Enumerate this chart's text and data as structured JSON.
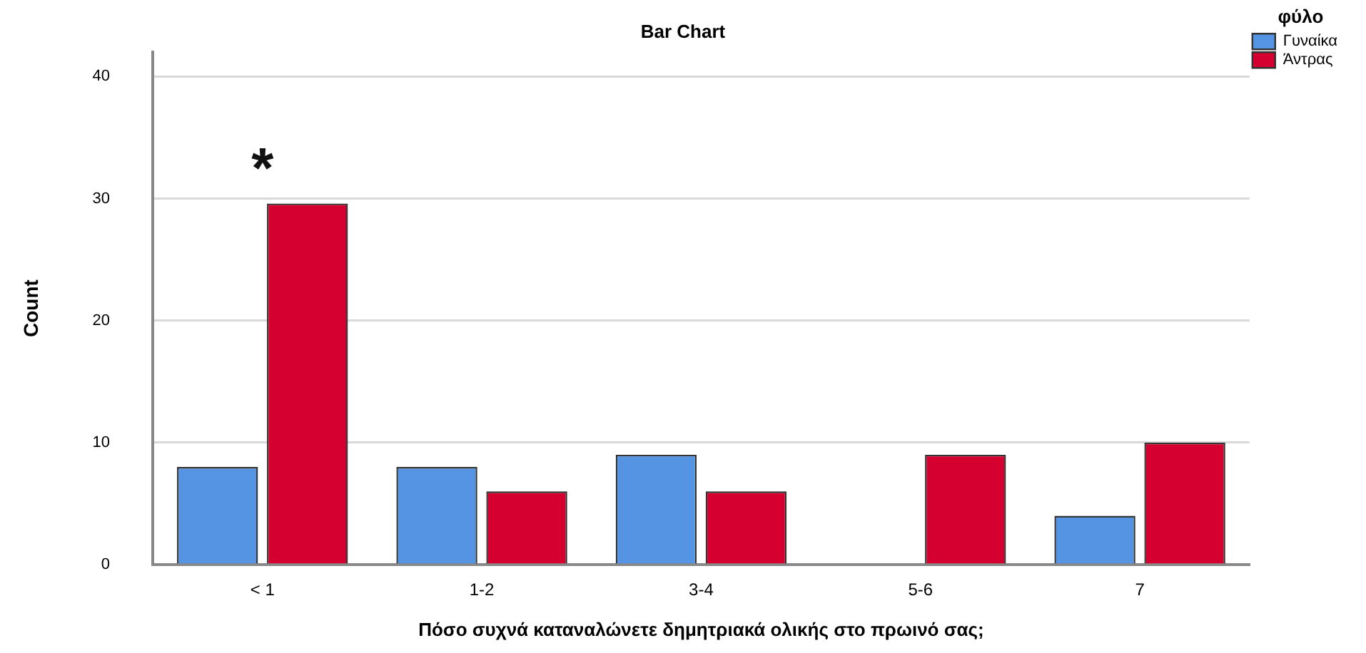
{
  "chart_data": {
    "type": "bar",
    "title": "Bar Chart",
    "xlabel": "Πόσο συχνά καταναλώνετε δημητριακά ολικής στο πρωινό σας;",
    "ylabel": "Count",
    "legend_title": "φύλο",
    "categories": [
      "< 1",
      "1-2",
      "3-4",
      "5-6",
      "7"
    ],
    "series": [
      {
        "name": "Γυναίκα",
        "color": "#5594e3",
        "values": [
          8,
          8,
          9,
          0,
          4
        ]
      },
      {
        "name": "Άντρας",
        "color": "#d5002f",
        "values": [
          29.6,
          6,
          6,
          9,
          10
        ]
      }
    ],
    "ylim": [
      0,
      42
    ],
    "yticks": [
      0,
      10,
      20,
      30,
      40
    ],
    "grid": "y",
    "legend": "top right",
    "annotations": [
      "*"
    ]
  }
}
